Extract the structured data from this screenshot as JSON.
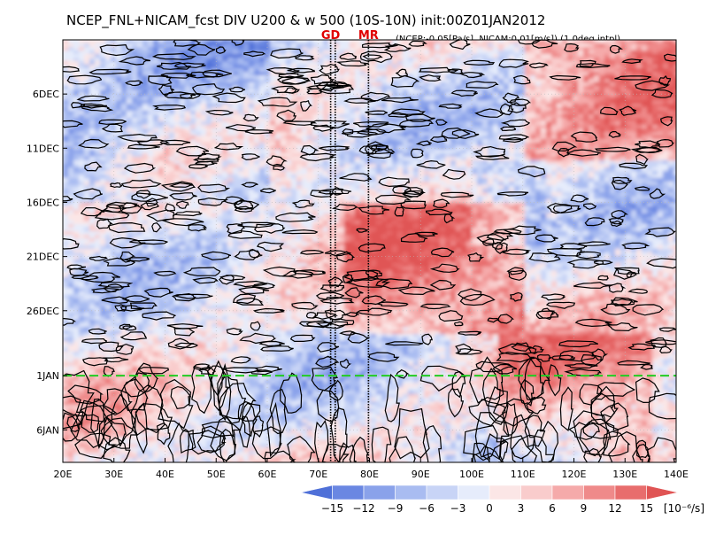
{
  "chart_data": {
    "type": "heatmap",
    "title": "NCEP_FNL+NICAM_fcst DIV U200 & w 500 (10S-10N) init:00Z01JAN2012",
    "subtitle": "(NCEP:-0.05[Pa/s], NICAM:0.01[m/s]) (1.0deg intpl)",
    "x_axis": {
      "label": "",
      "range": [
        20,
        140
      ],
      "ticks": [
        "20E",
        "30E",
        "40E",
        "50E",
        "60E",
        "70E",
        "80E",
        "90E",
        "100E",
        "110E",
        "120E",
        "130E",
        "140E"
      ],
      "tick_values": [
        20,
        30,
        40,
        50,
        60,
        70,
        80,
        90,
        100,
        110,
        120,
        130,
        140
      ]
    },
    "y_axis": {
      "label": "",
      "range": [
        "2011-12-01",
        "2012-01-09"
      ],
      "ticks": [
        "6DEC",
        "11DEC",
        "16DEC",
        "21DEC",
        "26DEC",
        "1JAN",
        "6JAN"
      ],
      "tick_values": [
        "2011-12-06",
        "2011-12-11",
        "2011-12-16",
        "2011-12-21",
        "2011-12-26",
        "2012-01-01",
        "2012-01-06"
      ]
    },
    "grid": true,
    "vertical_markers": [
      {
        "label": "GD",
        "lon": 72.4
      },
      {
        "label": "",
        "lon": 73.3
      },
      {
        "label": "MR",
        "lon": 79.8
      }
    ],
    "forecast_start_line": {
      "date": "2012-01-01",
      "color": "#22cc22"
    },
    "colorbar": {
      "levels": [
        -15,
        -12,
        -9,
        -6,
        -3,
        0,
        3,
        6,
        9,
        12,
        15
      ],
      "labels": [
        "−15",
        "−12",
        "−9",
        "−6",
        "−3",
        "0",
        "3",
        "6",
        "9",
        "12",
        "15"
      ],
      "units": "[10⁻⁶/s]",
      "colors": [
        "#4f70d8",
        "#6a87e2",
        "#8aa2ea",
        "#a9bcf1",
        "#c8d4f6",
        "#e6ecfb",
        "#fbe6e6",
        "#f9cccc",
        "#f5aaaa",
        "#ef8a8a",
        "#e86d6d",
        "#e05454"
      ]
    },
    "field": {
      "description": "",
      "sign_pattern": [
        {
          "lon_range": [
            20,
            60
          ],
          "date_range": [
            "2011-12-01",
            "2011-12-16"
          ],
          "value": -6
        },
        {
          "lon_range": [
            75,
            110
          ],
          "date_range": [
            "2011-12-16",
            "2011-12-28"
          ],
          "value": 9
        },
        {
          "lon_range": [
            110,
            140
          ],
          "date_range": [
            "2011-12-01",
            "2011-12-12"
          ],
          "value": 8
        },
        {
          "lon_range": [
            100,
            115
          ],
          "date_range": [
            "2011-12-12",
            "2011-12-20"
          ],
          "value": -5
        },
        {
          "lon_range": [
            105,
            135
          ],
          "date_range": [
            "2011-12-28",
            "2012-01-09"
          ],
          "value": 7
        }
      ]
    }
  }
}
